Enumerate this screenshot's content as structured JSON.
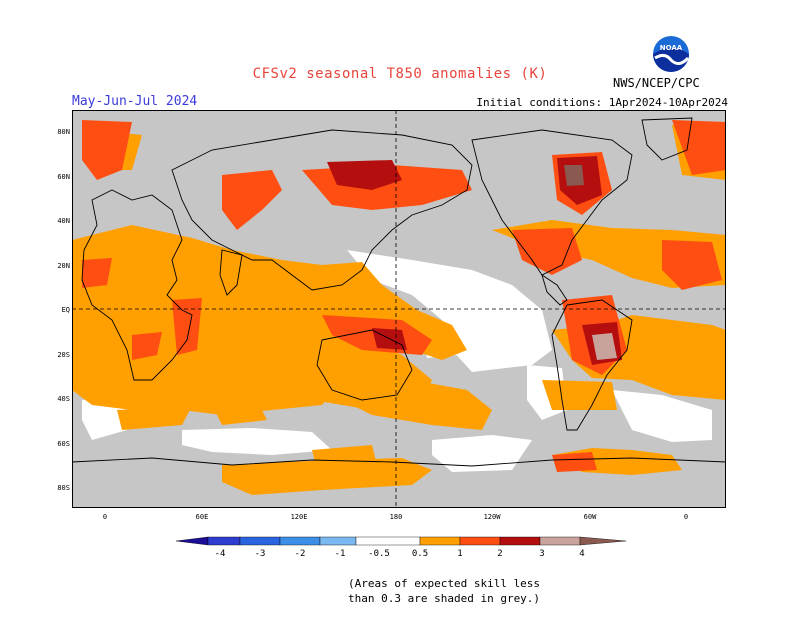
{
  "header": {
    "title": "CFSv2 seasonal T850 anomalies (K)",
    "season": "May-Jun-Jul 2024",
    "initial_conditions": "Initial conditions: 1Apr2024-10Apr2024",
    "agency": "NWS/NCEP/CPC",
    "logo_text": "NOAA"
  },
  "map": {
    "lat_labels": [
      "80N",
      "60N",
      "40N",
      "20N",
      "EQ",
      "20S",
      "40S",
      "60S",
      "80S"
    ],
    "lon_labels": [
      "0",
      "60E",
      "120E",
      "180",
      "120W",
      "60W",
      "0"
    ]
  },
  "colorbar": {
    "labels": [
      "-4",
      "-3",
      "-2",
      "-1",
      "-0.5",
      "0.5",
      "1",
      "2",
      "3",
      "4"
    ],
    "colors": {
      "lt_m4": "#1c0d96",
      "m4_m3": "#2f3cd0",
      "m3_m2": "#2a64e0",
      "m2_m1": "#3d8ee6",
      "m1_m05": "#7ab8f0",
      "neutral": "#ffffff",
      "p05_p1": "#ff9f00",
      "p1_p2": "#ff4e12",
      "p2_p3": "#b50e0e",
      "p3_p4": "#c8a39c",
      "gt_p4": "#8a5a50"
    }
  },
  "note": {
    "line1": "(Areas of expected skill less",
    "line2": "than 0.3 are shaded in grey.)"
  }
}
